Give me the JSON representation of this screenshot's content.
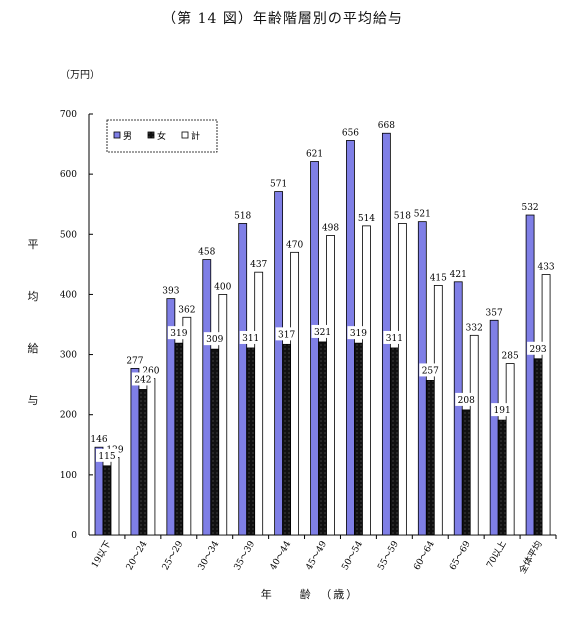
{
  "chart_data": {
    "type": "bar",
    "title": "（第 14 図）年齢階層別の平均給与",
    "unit": "（万円）",
    "ylabel": "平均給与",
    "xlabel": "年　　齢　（歳）",
    "ylim": [
      0,
      700
    ],
    "yticks": [
      0,
      100,
      200,
      300,
      400,
      500,
      600,
      700
    ],
    "legend_position": "top-left",
    "categories": [
      "19以下",
      "20～24",
      "25～29",
      "30～34",
      "35～39",
      "40～44",
      "45～49",
      "50～54",
      "55～59",
      "60～64",
      "65～69",
      "70以上",
      "全体平均"
    ],
    "series": [
      {
        "name": "男",
        "color": "#7f7fe6",
        "values": [
          146,
          277,
          393,
          458,
          518,
          571,
          621,
          656,
          668,
          521,
          421,
          357,
          532
        ]
      },
      {
        "name": "女",
        "color": "#111111",
        "values": [
          115,
          242,
          319,
          309,
          311,
          317,
          321,
          319,
          311,
          257,
          208,
          191,
          293
        ]
      },
      {
        "name": "計",
        "color": "#ffffff",
        "values": [
          129,
          260,
          362,
          400,
          437,
          470,
          498,
          514,
          518,
          415,
          332,
          285,
          433
        ]
      }
    ]
  }
}
